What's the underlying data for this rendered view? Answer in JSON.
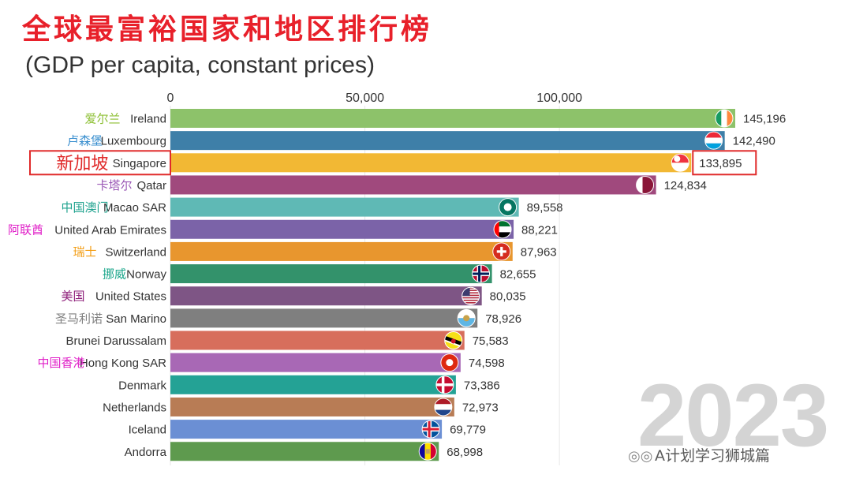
{
  "title": "全球最富裕国家和地区排行榜",
  "subtitle": "(GDP per capita, constant prices)",
  "year": "2023",
  "watermark": "A计划学习狮城篇",
  "watermark_icon": "wechat-icon",
  "chart_data": {
    "type": "bar",
    "orientation": "horizontal",
    "xlim": [
      0,
      145196
    ],
    "x_ticks": [
      "0",
      "50,000",
      "100,000"
    ],
    "x_tick_values": [
      0,
      50000,
      100000
    ],
    "grid": true,
    "highlight": "Singapore",
    "highlight_color": "#e02a2a",
    "bars": [
      {
        "cn": "爱尔兰",
        "cn_color": "#8cbf32",
        "name": "Ireland",
        "value": 145196,
        "label": "145,196",
        "color": "#8dc26a",
        "flag": "flag-ireland"
      },
      {
        "cn": "卢森堡",
        "cn_color": "#3a8fcf",
        "name": "Luxembourg",
        "value": 142490,
        "label": "142,490",
        "color": "#3e7fa8",
        "flag": "flag-luxembourg"
      },
      {
        "cn": "新加坡",
        "cn_color": "#e02a2a",
        "name": "Singapore",
        "value": 133895,
        "label": "133,895",
        "color": "#f2b834",
        "flag": "flag-singapore"
      },
      {
        "cn": "卡塔尔",
        "cn_color": "#9b59b6",
        "name": "Qatar",
        "value": 124834,
        "label": "124,834",
        "color": "#a0497d",
        "flag": "flag-qatar"
      },
      {
        "cn": "中国澳门",
        "cn_color": "#1fa28e",
        "name": "Macao SAR",
        "value": 89558,
        "label": "89,558",
        "color": "#5fb9b5",
        "flag": "flag-macao"
      },
      {
        "cn": "阿联酋",
        "cn_color": "#e020c8",
        "name": "United Arab Emirates",
        "value": 88221,
        "label": "88,221",
        "color": "#7b63a8",
        "flag": "flag-uae"
      },
      {
        "cn": "瑞士",
        "cn_color": "#f39c12",
        "name": "Switzerland",
        "value": 87963,
        "label": "87,963",
        "color": "#e8962e",
        "flag": "flag-switzerland"
      },
      {
        "cn": "挪威",
        "cn_color": "#17a589",
        "name": "Norway",
        "value": 82655,
        "label": "82,655",
        "color": "#33926b",
        "flag": "flag-norway"
      },
      {
        "cn": "美国",
        "cn_color": "#8e1f7a",
        "name": "United States",
        "value": 80035,
        "label": "80,035",
        "color": "#7e5585",
        "flag": "flag-usa"
      },
      {
        "cn": "圣马利诺",
        "cn_color": "#808080",
        "name": "San Marino",
        "value": 78926,
        "label": "78,926",
        "color": "#7f7f7f",
        "flag": "flag-san-marino"
      },
      {
        "cn": "",
        "cn_color": "#000000",
        "name": "Brunei Darussalam",
        "value": 75583,
        "label": "75,583",
        "color": "#d76e5c",
        "flag": "flag-brunei"
      },
      {
        "cn": "中国香港",
        "cn_color": "#e020c8",
        "name": "Hong Kong SAR",
        "value": 74598,
        "label": "74,598",
        "color": "#a868b5",
        "flag": "flag-hong-kong"
      },
      {
        "cn": "",
        "cn_color": "#000000",
        "name": "Denmark",
        "value": 73386,
        "label": "73,386",
        "color": "#24a295",
        "flag": "flag-denmark"
      },
      {
        "cn": "",
        "cn_color": "#000000",
        "name": "Netherlands",
        "value": 72973,
        "label": "72,973",
        "color": "#b87c55",
        "flag": "flag-netherlands"
      },
      {
        "cn": "",
        "cn_color": "#000000",
        "name": "Iceland",
        "value": 69779,
        "label": "69,779",
        "color": "#6b8fd4",
        "flag": "flag-iceland"
      },
      {
        "cn": "",
        "cn_color": "#000000",
        "name": "Andorra",
        "value": 68998,
        "label": "68,998",
        "color": "#5e9a4e",
        "flag": "flag-andorra"
      }
    ]
  }
}
